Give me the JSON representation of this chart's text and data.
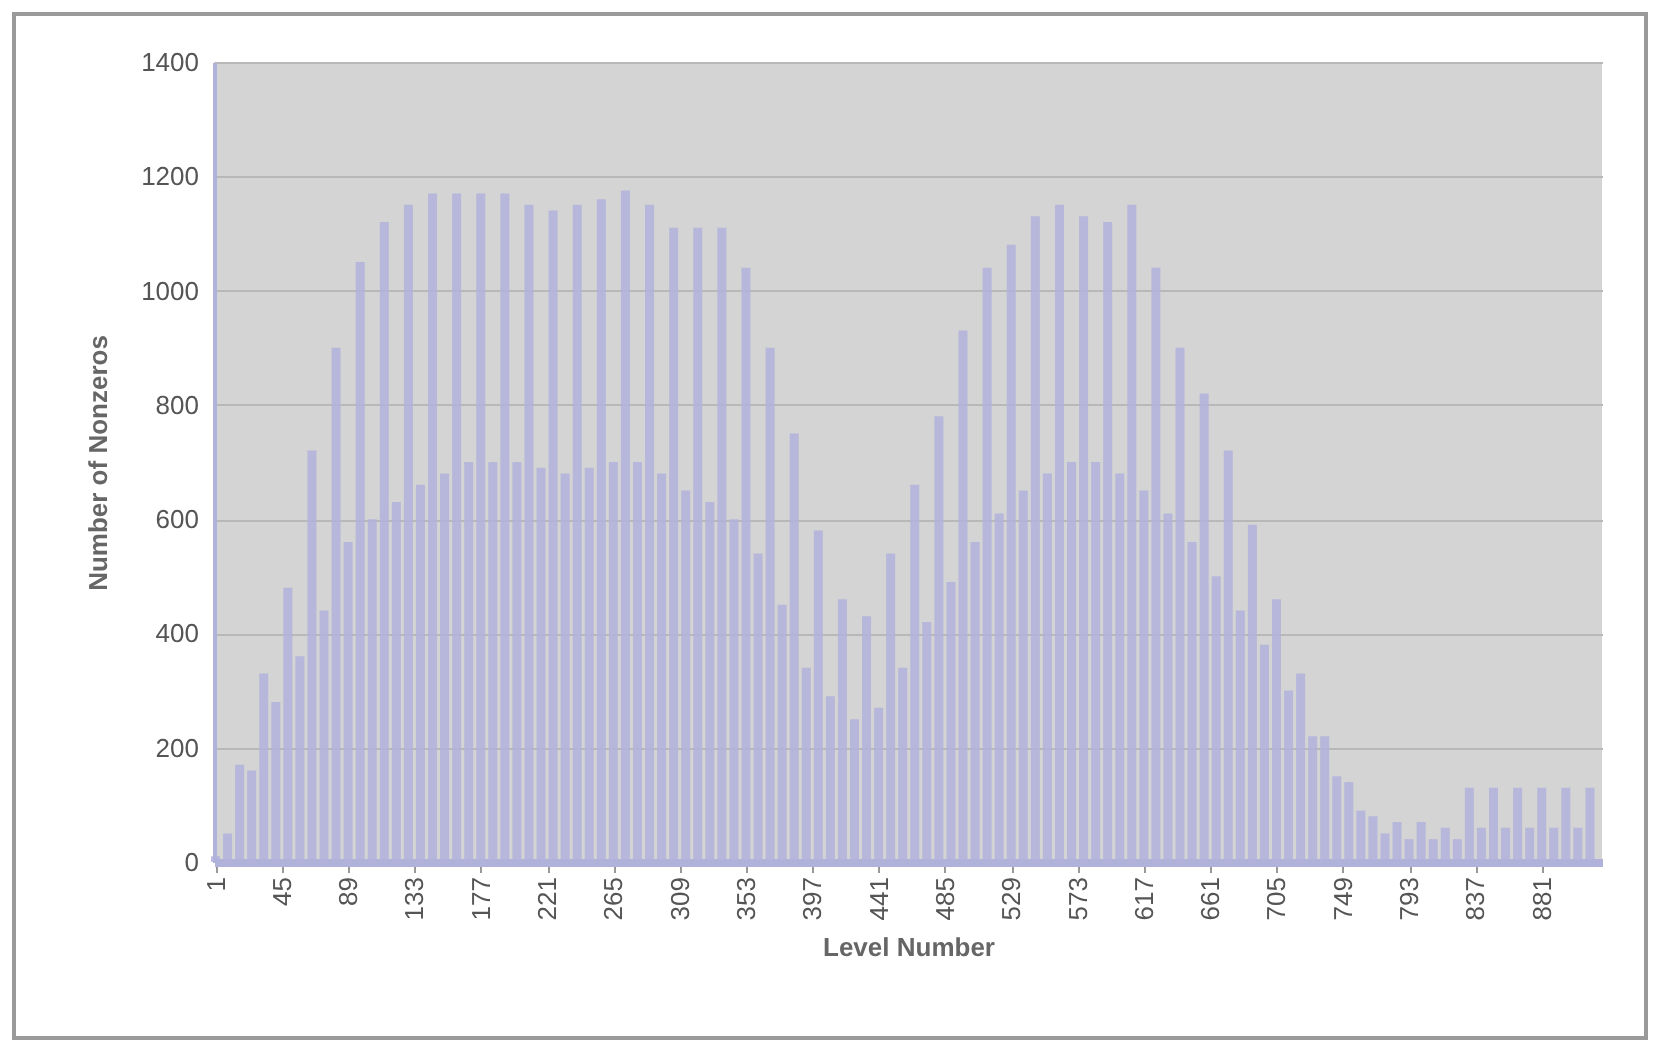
{
  "chart_data": {
    "type": "bar",
    "xlabel": "Level Number",
    "ylabel": "Number of Nonzeros",
    "color": "#b0b2da",
    "grid": "y",
    "xlim": [
      0,
      921
    ],
    "xticks": [
      1,
      45,
      89,
      133,
      177,
      221,
      265,
      309,
      353,
      397,
      441,
      485,
      529,
      573,
      617,
      661,
      705,
      749,
      793,
      837,
      881
    ],
    "ylim": [
      0,
      1400
    ],
    "yticks": [
      0,
      200,
      400,
      600,
      800,
      1000,
      1200,
      1400
    ],
    "x": [
      1,
      9,
      17,
      25,
      33,
      41,
      49,
      57,
      65,
      73,
      81,
      89,
      97,
      105,
      113,
      121,
      129,
      137,
      145,
      153,
      161,
      169,
      177,
      185,
      193,
      201,
      209,
      217,
      225,
      233,
      241,
      249,
      257,
      265,
      273,
      281,
      289,
      297,
      305,
      313,
      321,
      329,
      337,
      345,
      353,
      361,
      369,
      377,
      385,
      393,
      401,
      409,
      417,
      425,
      433,
      441,
      449,
      457,
      465,
      473,
      481,
      489,
      497,
      505,
      513,
      521,
      529,
      537,
      545,
      553,
      561,
      569,
      577,
      585,
      593,
      601,
      609,
      617,
      625,
      633,
      641,
      649,
      657,
      665,
      673,
      681,
      689,
      697,
      705,
      713,
      721,
      729,
      737,
      745,
      753,
      761,
      769,
      777,
      785,
      793,
      801,
      809,
      817,
      825,
      833,
      841,
      849,
      857,
      865,
      873,
      881,
      889,
      897,
      905,
      913
    ],
    "values": [
      10,
      50,
      170,
      160,
      330,
      280,
      480,
      360,
      720,
      440,
      900,
      560,
      1050,
      600,
      1120,
      630,
      1150,
      660,
      1170,
      680,
      1170,
      700,
      1170,
      700,
      1170,
      700,
      1150,
      690,
      1140,
      680,
      1150,
      690,
      1160,
      700,
      1175,
      700,
      1150,
      680,
      1110,
      650,
      1110,
      630,
      1110,
      600,
      1040,
      540,
      900,
      450,
      750,
      340,
      580,
      290,
      460,
      250,
      430,
      270,
      540,
      340,
      660,
      420,
      780,
      490,
      930,
      560,
      1040,
      610,
      1080,
      650,
      1130,
      680,
      1150,
      700,
      1130,
      700,
      1120,
      680,
      1150,
      650,
      1040,
      610,
      900,
      560,
      820,
      500,
      720,
      440,
      590,
      380,
      460,
      300,
      330,
      220,
      220,
      150,
      140,
      90,
      80,
      50,
      70,
      40,
      70,
      40,
      60,
      40,
      130,
      60,
      130,
      60,
      130,
      60,
      130,
      60,
      130,
      60,
      130
    ]
  }
}
